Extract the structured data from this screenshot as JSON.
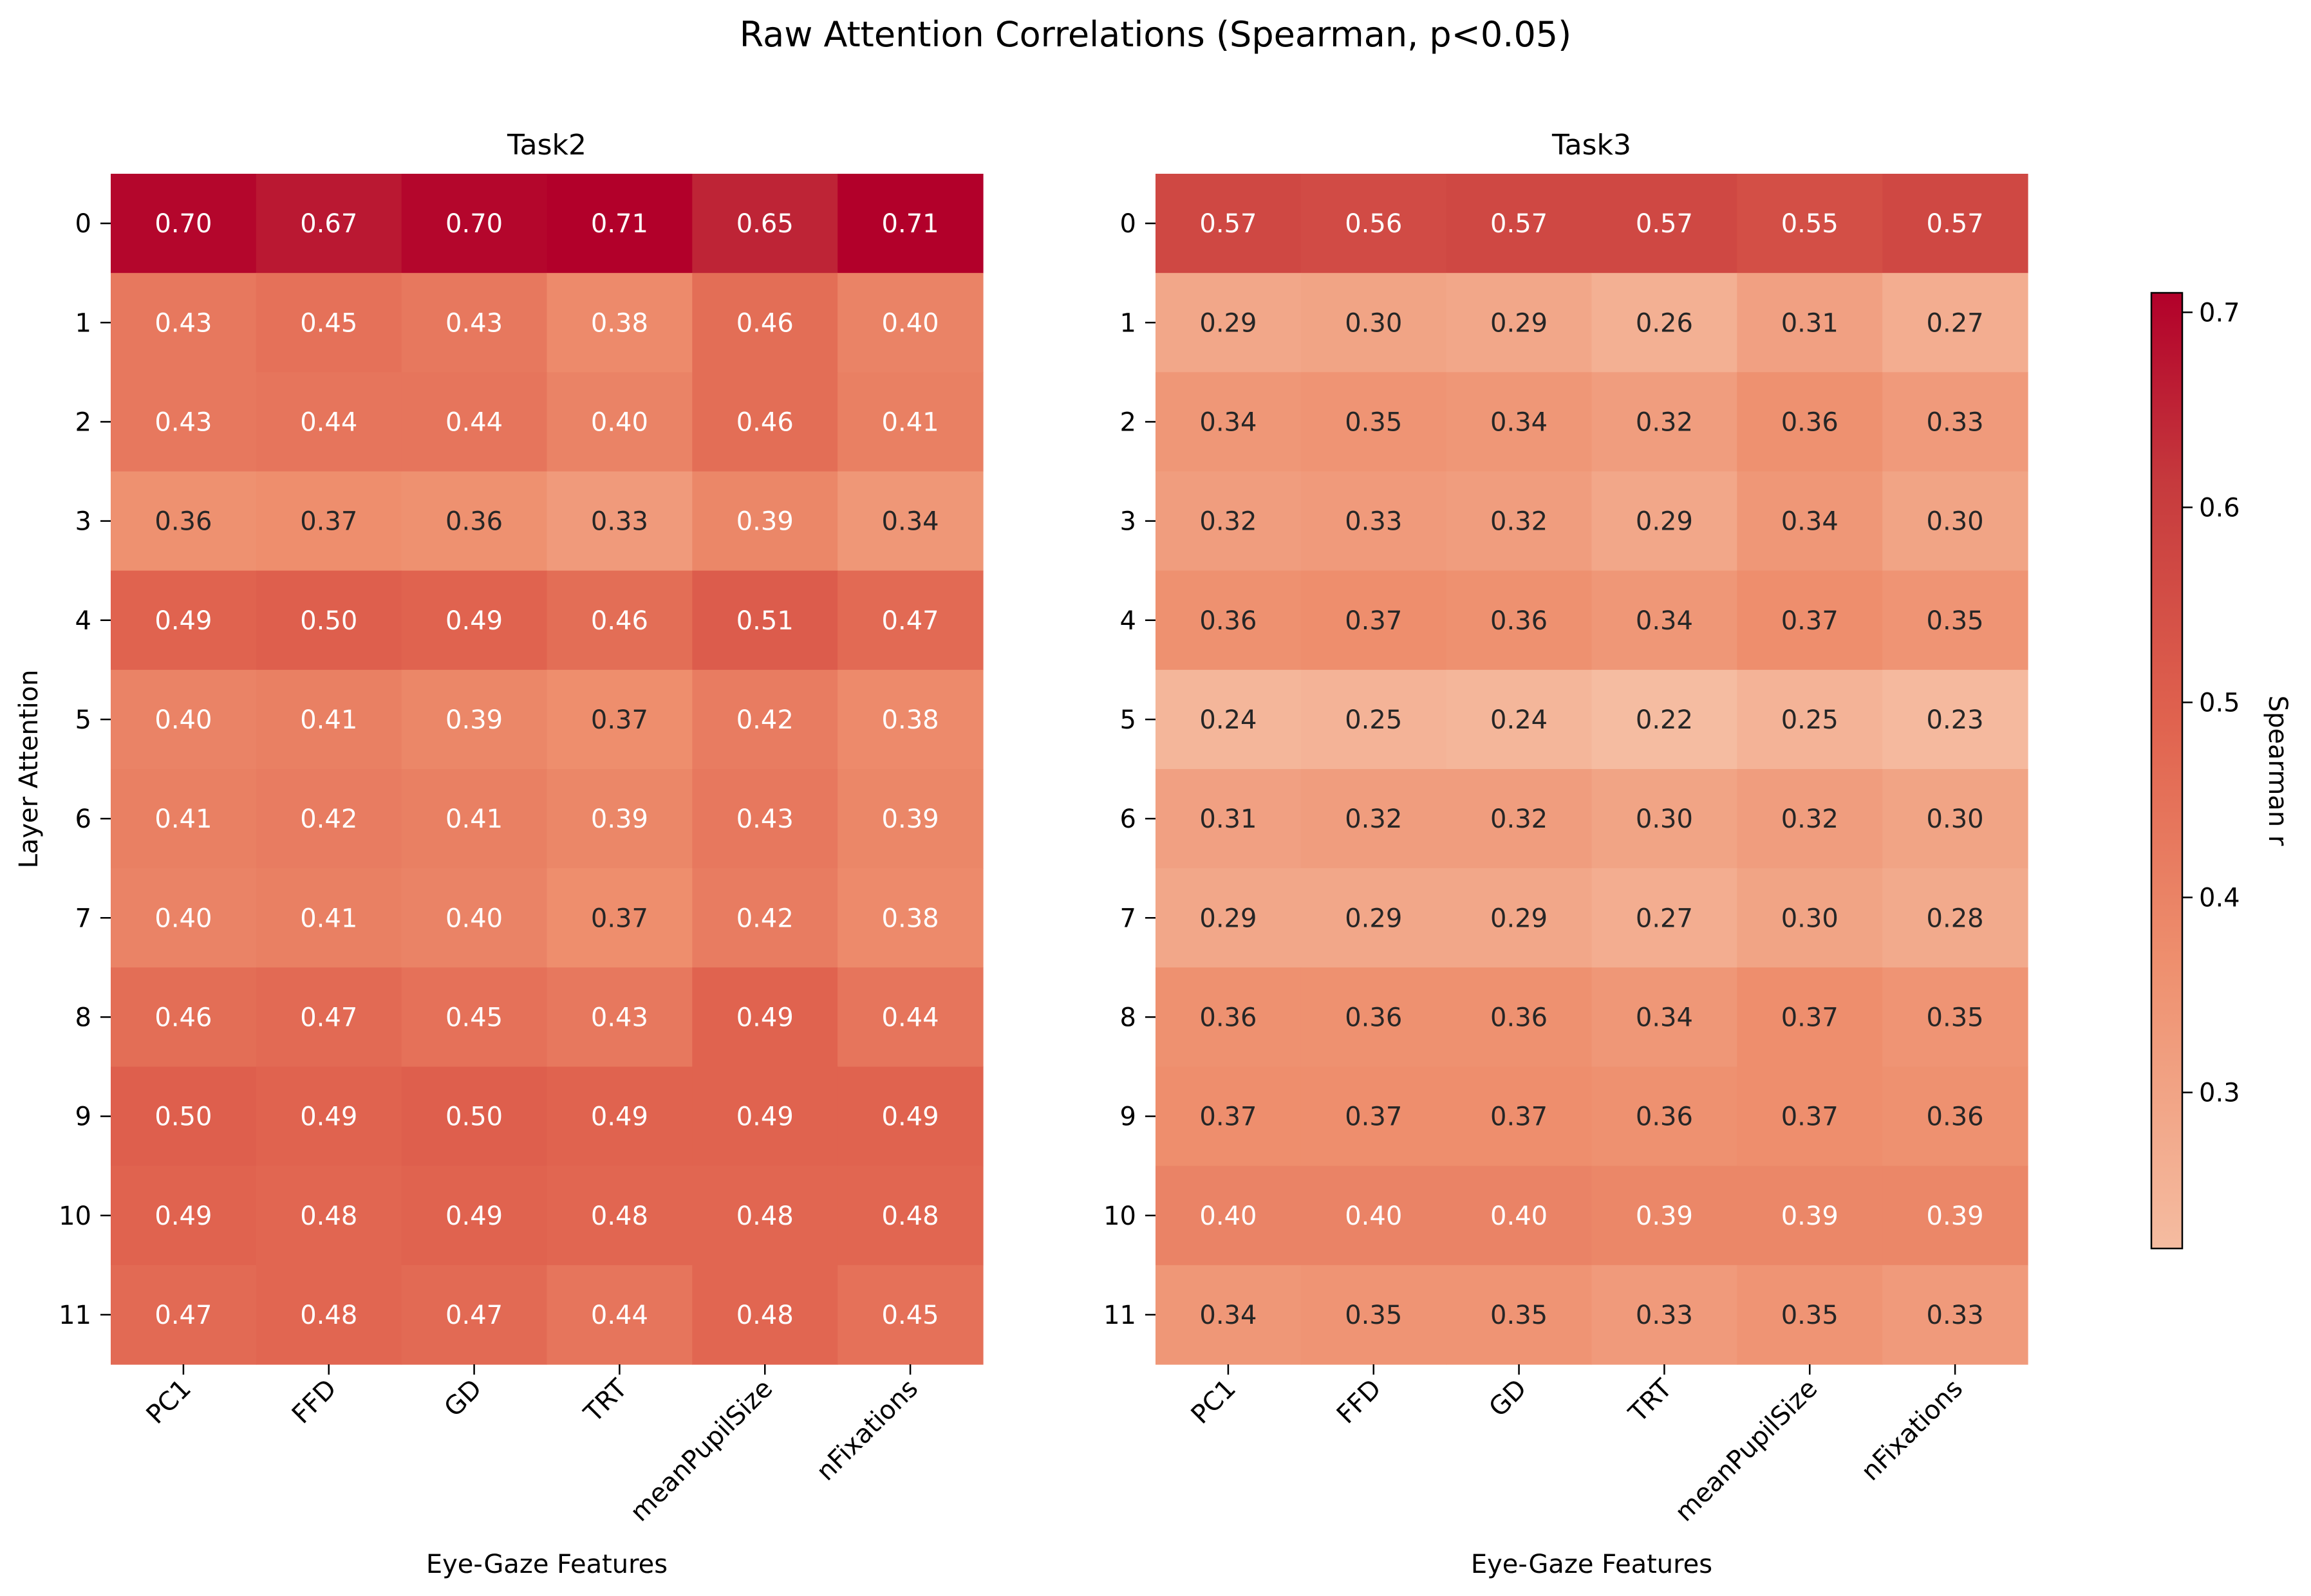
{
  "figure": {
    "title": "Raw Attention Correlations (Spearman, p<0.05)"
  },
  "colorbar": {
    "label": "Spearman r",
    "range": [
      0.22,
      0.71
    ],
    "ticks": [
      0.3,
      0.4,
      0.5,
      0.6,
      0.7
    ],
    "tick_labels": [
      "0.3",
      "0.4",
      "0.5",
      "0.6",
      "0.7"
    ]
  },
  "colors": {
    "low": "#f5bca1",
    "mid_low": "#ee8f6e",
    "mid": "#e0634f",
    "high": "#c63a3d",
    "max": "#b2002a"
  },
  "chart_data": [
    {
      "type": "heatmap",
      "title": "Task2",
      "xlabel": "Eye-Gaze Features",
      "ylabel": "Layer Attention",
      "x": [
        "PC1",
        "FFD",
        "GD",
        "TRT",
        "meanPupilSize",
        "nFixations"
      ],
      "y": [
        "0",
        "1",
        "2",
        "3",
        "4",
        "5",
        "6",
        "7",
        "8",
        "9",
        "10",
        "11"
      ],
      "values": [
        [
          0.7,
          0.67,
          0.7,
          0.71,
          0.65,
          0.71
        ],
        [
          0.43,
          0.45,
          0.43,
          0.38,
          0.46,
          0.4
        ],
        [
          0.43,
          0.44,
          0.44,
          0.4,
          0.46,
          0.41
        ],
        [
          0.36,
          0.37,
          0.36,
          0.33,
          0.39,
          0.34
        ],
        [
          0.49,
          0.5,
          0.49,
          0.46,
          0.51,
          0.47
        ],
        [
          0.4,
          0.41,
          0.39,
          0.37,
          0.42,
          0.38
        ],
        [
          0.41,
          0.42,
          0.41,
          0.39,
          0.43,
          0.39
        ],
        [
          0.4,
          0.41,
          0.4,
          0.37,
          0.42,
          0.38
        ],
        [
          0.46,
          0.47,
          0.45,
          0.43,
          0.49,
          0.44
        ],
        [
          0.5,
          0.49,
          0.5,
          0.49,
          0.49,
          0.49
        ],
        [
          0.49,
          0.48,
          0.49,
          0.48,
          0.48,
          0.48
        ],
        [
          0.47,
          0.48,
          0.47,
          0.44,
          0.48,
          0.45
        ]
      ],
      "value_labels": [
        [
          "0.70",
          "0.67",
          "0.70",
          "0.71",
          "0.65",
          "0.71"
        ],
        [
          "0.43",
          "0.45",
          "0.43",
          "0.38",
          "0.46",
          "0.40"
        ],
        [
          "0.43",
          "0.44",
          "0.44",
          "0.40",
          "0.46",
          "0.41"
        ],
        [
          "0.36",
          "0.37",
          "0.36",
          "0.33",
          "0.39",
          "0.34"
        ],
        [
          "0.49",
          "0.50",
          "0.49",
          "0.46",
          "0.51",
          "0.47"
        ],
        [
          "0.40",
          "0.41",
          "0.39",
          "0.37",
          "0.42",
          "0.38"
        ],
        [
          "0.41",
          "0.42",
          "0.41",
          "0.39",
          "0.43",
          "0.39"
        ],
        [
          "0.40",
          "0.41",
          "0.40",
          "0.37",
          "0.42",
          "0.38"
        ],
        [
          "0.46",
          "0.47",
          "0.45",
          "0.43",
          "0.49",
          "0.44"
        ],
        [
          "0.50",
          "0.49",
          "0.50",
          "0.49",
          "0.49",
          "0.49"
        ],
        [
          "0.49",
          "0.48",
          "0.49",
          "0.48",
          "0.48",
          "0.48"
        ],
        [
          "0.47",
          "0.48",
          "0.47",
          "0.44",
          "0.48",
          "0.45"
        ]
      ]
    },
    {
      "type": "heatmap",
      "title": "Task3",
      "xlabel": "Eye-Gaze Features",
      "ylabel": "",
      "x": [
        "PC1",
        "FFD",
        "GD",
        "TRT",
        "meanPupilSize",
        "nFixations"
      ],
      "y": [
        "0",
        "1",
        "2",
        "3",
        "4",
        "5",
        "6",
        "7",
        "8",
        "9",
        "10",
        "11"
      ],
      "values": [
        [
          0.57,
          0.56,
          0.57,
          0.57,
          0.55,
          0.57
        ],
        [
          0.29,
          0.3,
          0.29,
          0.26,
          0.31,
          0.27
        ],
        [
          0.34,
          0.35,
          0.34,
          0.32,
          0.36,
          0.33
        ],
        [
          0.32,
          0.33,
          0.32,
          0.29,
          0.34,
          0.3
        ],
        [
          0.36,
          0.37,
          0.36,
          0.34,
          0.37,
          0.35
        ],
        [
          0.24,
          0.25,
          0.24,
          0.22,
          0.25,
          0.23
        ],
        [
          0.31,
          0.32,
          0.32,
          0.3,
          0.32,
          0.3
        ],
        [
          0.29,
          0.29,
          0.29,
          0.27,
          0.3,
          0.28
        ],
        [
          0.36,
          0.36,
          0.36,
          0.34,
          0.37,
          0.35
        ],
        [
          0.37,
          0.37,
          0.37,
          0.36,
          0.37,
          0.36
        ],
        [
          0.4,
          0.4,
          0.4,
          0.39,
          0.39,
          0.39
        ],
        [
          0.34,
          0.35,
          0.35,
          0.33,
          0.35,
          0.33
        ]
      ],
      "value_labels": [
        [
          "0.57",
          "0.56",
          "0.57",
          "0.57",
          "0.55",
          "0.57"
        ],
        [
          "0.29",
          "0.30",
          "0.29",
          "0.26",
          "0.31",
          "0.27"
        ],
        [
          "0.34",
          "0.35",
          "0.34",
          "0.32",
          "0.36",
          "0.33"
        ],
        [
          "0.32",
          "0.33",
          "0.32",
          "0.29",
          "0.34",
          "0.30"
        ],
        [
          "0.36",
          "0.37",
          "0.36",
          "0.34",
          "0.37",
          "0.35"
        ],
        [
          "0.24",
          "0.25",
          "0.24",
          "0.22",
          "0.25",
          "0.23"
        ],
        [
          "0.31",
          "0.32",
          "0.32",
          "0.30",
          "0.32",
          "0.30"
        ],
        [
          "0.29",
          "0.29",
          "0.29",
          "0.27",
          "0.30",
          "0.28"
        ],
        [
          "0.36",
          "0.36",
          "0.36",
          "0.34",
          "0.37",
          "0.35"
        ],
        [
          "0.37",
          "0.37",
          "0.37",
          "0.36",
          "0.37",
          "0.36"
        ],
        [
          "0.40",
          "0.40",
          "0.40",
          "0.39",
          "0.39",
          "0.39"
        ],
        [
          "0.34",
          "0.35",
          "0.35",
          "0.33",
          "0.35",
          "0.33"
        ]
      ]
    }
  ]
}
